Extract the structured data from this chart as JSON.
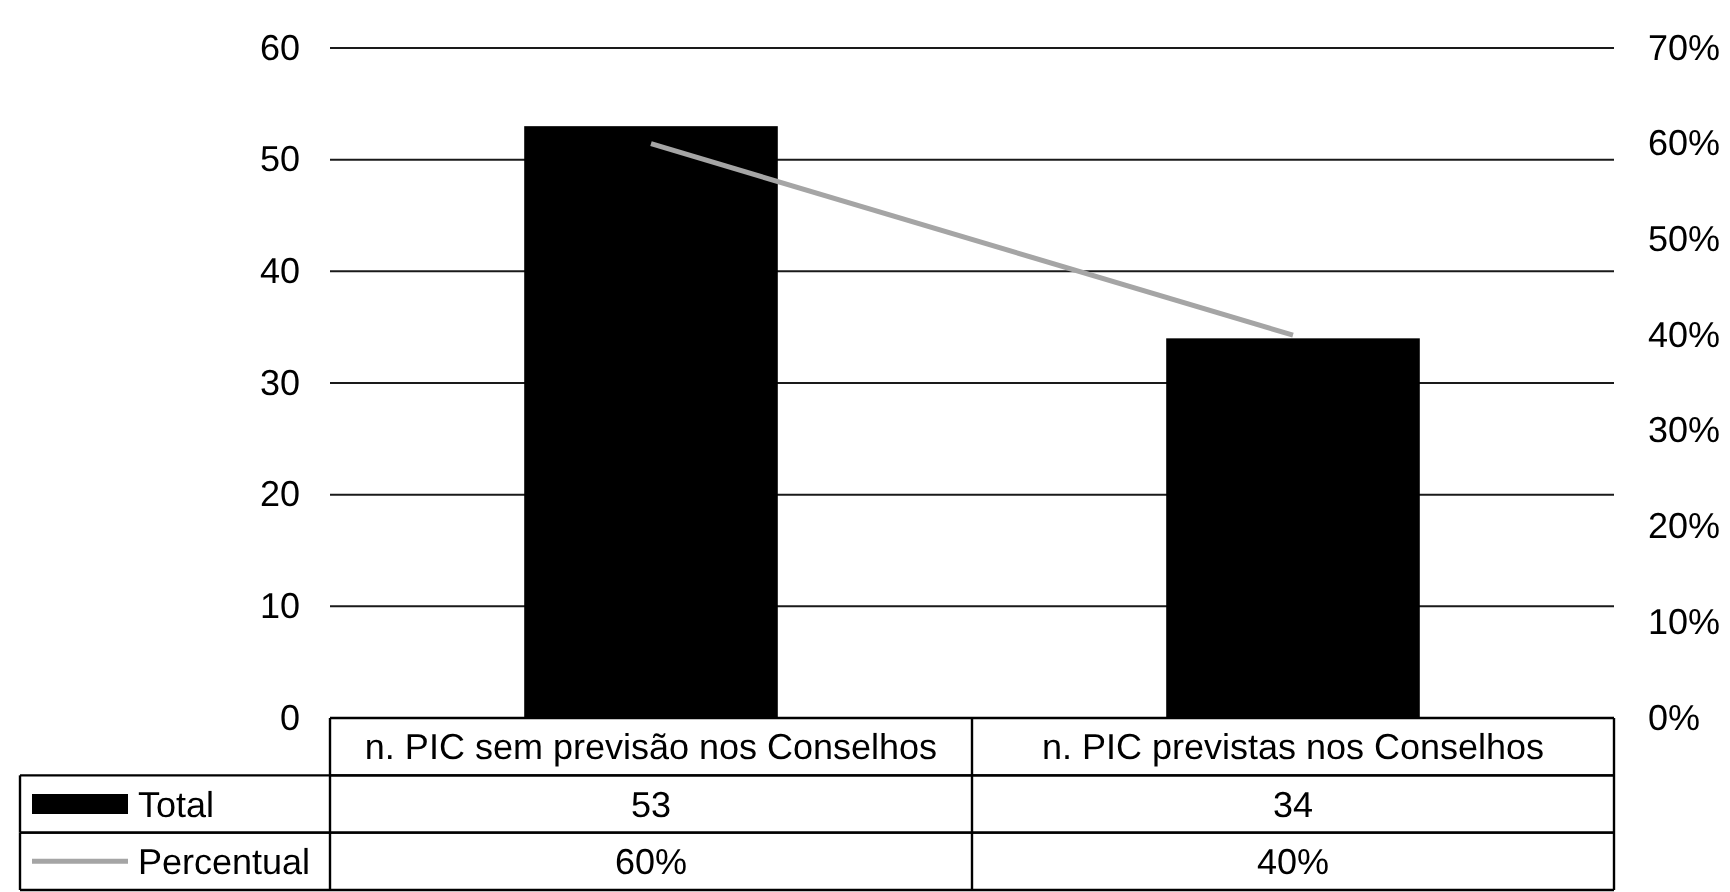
{
  "chart_data": {
    "type": "bar",
    "categories": [
      "n. PIC sem previsão nos Conselhos",
      "n. PIC previstas nos Conselhos"
    ],
    "series": [
      {
        "name": "Total",
        "color": "#000000",
        "values": [
          53,
          34
        ],
        "value_labels": [
          "53",
          "34"
        ]
      },
      {
        "name": "Percentual",
        "type": "line",
        "axis": "y2",
        "color": "#a5a5a5",
        "values": [
          60,
          40
        ],
        "value_labels": [
          "60%",
          "40%"
        ]
      }
    ],
    "ylim": [
      0,
      60
    ],
    "yticks": [
      0,
      10,
      20,
      30,
      40,
      50,
      60
    ],
    "y2lim": [
      0,
      70
    ],
    "y2ticks": [
      {
        "value": 0,
        "label": "0%"
      },
      {
        "value": 10,
        "label": "10%"
      },
      {
        "value": 20,
        "label": "20%"
      },
      {
        "value": 30,
        "label": "30%"
      },
      {
        "value": 40,
        "label": "40%"
      },
      {
        "value": 50,
        "label": "50%"
      },
      {
        "value": 60,
        "label": "60%"
      },
      {
        "value": 70,
        "label": "70%"
      }
    ],
    "grid": "y",
    "legend": "bottom"
  }
}
